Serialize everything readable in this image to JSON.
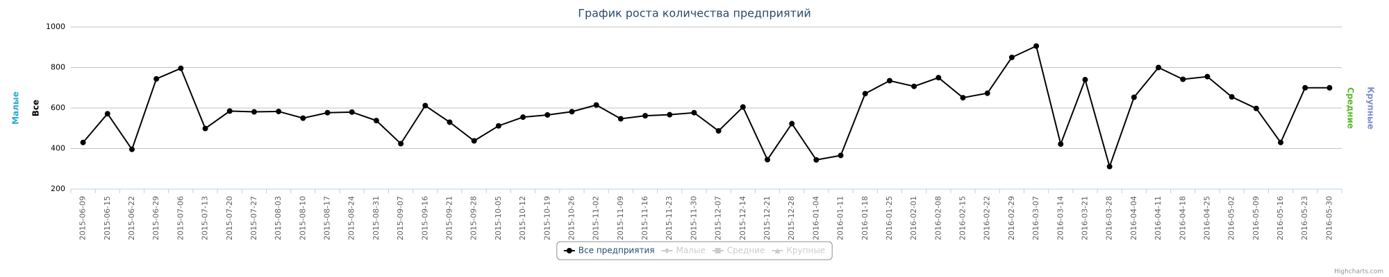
{
  "chart_data": {
    "type": "line",
    "title": "График роста количества предприятий",
    "categories": [
      "2015-06-09",
      "2015-06-15",
      "2015-06-22",
      "2015-06-29",
      "2015-07-06",
      "2015-07-13",
      "2015-07-20",
      "2015-07-27",
      "2015-08-03",
      "2015-08-10",
      "2015-08-17",
      "2015-08-24",
      "2015-08-31",
      "2015-09-07",
      "2015-09-16",
      "2015-09-21",
      "2015-09-28",
      "2015-10-05",
      "2015-10-12",
      "2015-10-19",
      "2015-10-26",
      "2015-11-02",
      "2015-11-09",
      "2015-11-16",
      "2015-11-23",
      "2015-11-30",
      "2015-12-07",
      "2015-12-14",
      "2015-12-21",
      "2015-12-28",
      "2016-01-04",
      "2016-01-11",
      "2016-01-18",
      "2016-01-25",
      "2016-02-01",
      "2016-02-08",
      "2016-02-15",
      "2016-02-22",
      "2016-02-29",
      "2016-03-07",
      "2016-03-14",
      "2016-03-21",
      "2016-03-28",
      "2016-04-04",
      "2016-04-11",
      "2016-04-18",
      "2016-04-25",
      "2016-05-02",
      "2016-05-09",
      "2016-05-16",
      "2016-05-23",
      "2016-05-30"
    ],
    "series": [
      {
        "name": "Все предприятия",
        "color": "#000000",
        "marker": "circle",
        "visible": true,
        "values": [
          430,
          572,
          396,
          744,
          796,
          499,
          585,
          581,
          583,
          550,
          577,
          580,
          538,
          424,
          612,
          530,
          438,
          512,
          555,
          566,
          582,
          615,
          547,
          562,
          567,
          577,
          487,
          605,
          345,
          523,
          344,
          366,
          671,
          735,
          707,
          750,
          651,
          673,
          850,
          906,
          422,
          740,
          311,
          653,
          800,
          742,
          755,
          655,
          598,
          430,
          700,
          700
        ]
      },
      {
        "name": "Малые",
        "color": "#cccccc",
        "marker": "diamond",
        "visible": false
      },
      {
        "name": "Средние",
        "color": "#cccccc",
        "marker": "square",
        "visible": false
      },
      {
        "name": "Крупные",
        "color": "#cccccc",
        "marker": "triangle",
        "visible": false
      }
    ],
    "y_titles_left": [
      {
        "text": "Малые",
        "color": "#2aa9d2"
      },
      {
        "text": "Все",
        "color": "#000000"
      }
    ],
    "y_titles_right": [
      {
        "text": "Средние",
        "color": "#5cb82e"
      },
      {
        "text": "Крупные",
        "color": "#7f8bd0"
      }
    ],
    "ylim": [
      200,
      1000
    ],
    "yticks": [
      200,
      400,
      600,
      800,
      1000
    ],
    "grid": true,
    "credit": "Highcharts.com"
  }
}
